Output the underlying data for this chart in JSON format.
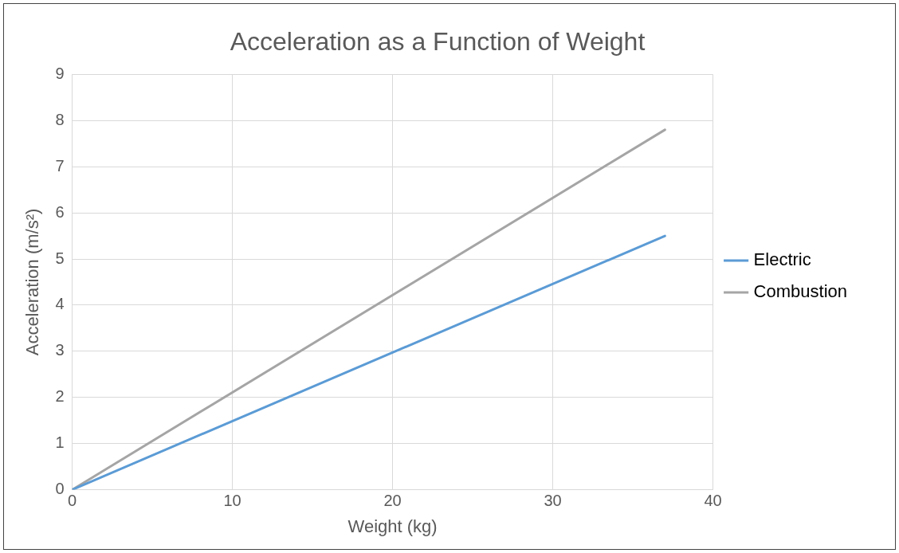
{
  "chart_data": {
    "type": "line",
    "title": "Acceleration as a Function of Weight",
    "xlabel": "Weight (kg)",
    "ylabel": "Acceleration (m/s²)",
    "x": [
      0,
      37
    ],
    "series": [
      {
        "name": "Electric",
        "color": "#5b9bd5",
        "values": [
          0,
          5.5
        ]
      },
      {
        "name": "Combustion",
        "color": "#a5a5a5",
        "values": [
          0,
          7.8
        ]
      }
    ],
    "xlim": [
      0,
      40
    ],
    "xticks": [
      0,
      10,
      20,
      30,
      40
    ],
    "ylim": [
      0,
      9
    ],
    "yticks": [
      0,
      1,
      2,
      3,
      4,
      5,
      6,
      7,
      8,
      9
    ],
    "grid": true,
    "legend": "right",
    "marker": "none",
    "line_style": "solid"
  }
}
